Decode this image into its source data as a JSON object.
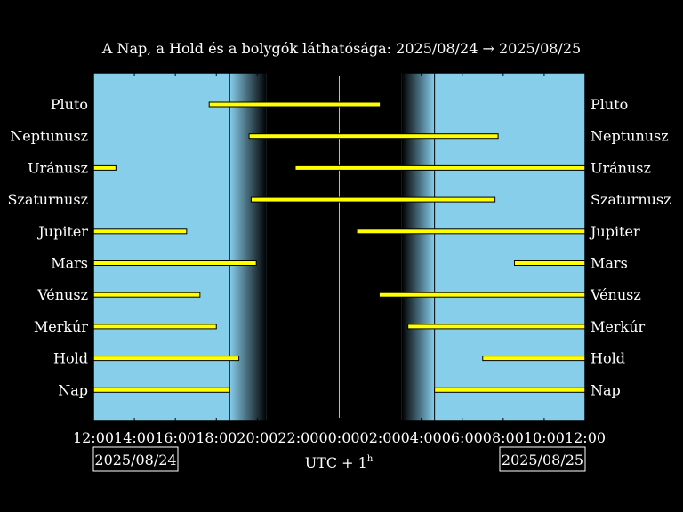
{
  "chart_data": {
    "type": "gantt",
    "title": "A Nap, a Hold és a bolygók láthatósága: 2025/08/24 → 2025/08/25",
    "xlabel": "UTC + 1",
    "xlabel_superscript": "h",
    "x_unit": "hours since 2025/08/24 12:00 (UTC+1)",
    "xlim": [
      0,
      24
    ],
    "x_ticks": [
      "12:00",
      "14:00",
      "16:00",
      "18:00",
      "20:00",
      "22:00",
      "00:00",
      "02:00",
      "04:00",
      "06:00",
      "08:00",
      "10:00",
      "12:00"
    ],
    "date_left": "2025/08/24",
    "date_right": "2025/08/25",
    "sunset": 6.65,
    "dusk_end": 8.45,
    "midnight": 12.0,
    "dawn_start": 15.05,
    "sunrise": 16.65,
    "colors": {
      "day": "#87ceeb",
      "night": "#000000",
      "bar": "#ffff00"
    },
    "rows": [
      {
        "name": "Pluto",
        "segments": [
          [
            5.65,
            14.0
          ]
        ]
      },
      {
        "name": "Neptunusz",
        "segments": [
          [
            7.6,
            19.75
          ]
        ]
      },
      {
        "name": "Uránusz",
        "segments": [
          [
            0,
            1.1
          ],
          [
            9.85,
            24
          ]
        ]
      },
      {
        "name": "Szaturnusz",
        "segments": [
          [
            7.7,
            19.6
          ]
        ]
      },
      {
        "name": "Jupiter",
        "segments": [
          [
            0,
            4.55
          ],
          [
            12.85,
            24
          ]
        ]
      },
      {
        "name": "Mars",
        "segments": [
          [
            0,
            7.95
          ],
          [
            20.55,
            24
          ]
        ]
      },
      {
        "name": "Vénusz",
        "segments": [
          [
            0,
            5.2
          ],
          [
            13.95,
            24
          ]
        ]
      },
      {
        "name": "Merkúr",
        "segments": [
          [
            0,
            6.0
          ],
          [
            15.35,
            24
          ]
        ]
      },
      {
        "name": "Hold",
        "segments": [
          [
            0,
            7.1
          ],
          [
            19.0,
            24
          ]
        ]
      },
      {
        "name": "Nap",
        "segments": [
          [
            0,
            6.65
          ],
          [
            16.65,
            24
          ]
        ]
      }
    ]
  }
}
